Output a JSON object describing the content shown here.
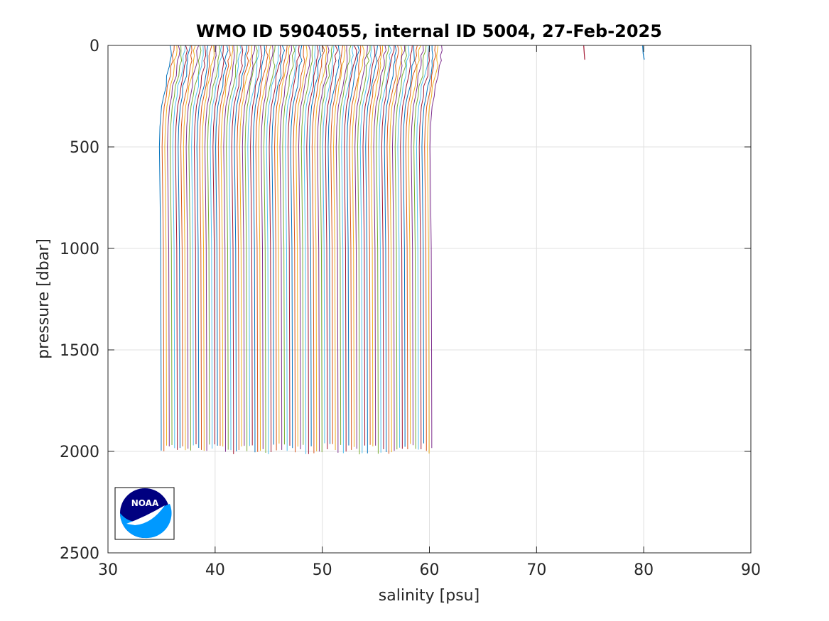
{
  "chart_data": {
    "type": "line",
    "title": "WMO ID 5904055, internal ID 5004, 27-Feb-2025",
    "xlabel": "salinity [psu]",
    "ylabel": "pressure [dbar]",
    "xlim": [
      30,
      90
    ],
    "ylim": [
      0,
      2500
    ],
    "y_reversed": true,
    "xticks": [
      30,
      40,
      50,
      60,
      70,
      80,
      90
    ],
    "yticks": [
      0,
      500,
      1000,
      1500,
      2000,
      2500
    ],
    "grid": true,
    "profile_offset_psu": 0.25,
    "profile_count": 102,
    "base_profile": {
      "pressure": [
        0,
        25,
        50,
        75,
        100,
        150,
        200,
        250,
        300,
        400,
        500,
        700,
        1000,
        1500,
        1900,
        2000
      ],
      "salinity": [
        35.85,
        35.85,
        35.8,
        35.75,
        35.7,
        35.55,
        35.35,
        35.2,
        35.0,
        34.85,
        34.8,
        34.85,
        34.92,
        34.95,
        34.97,
        34.97
      ]
    },
    "outlier_profiles": [
      {
        "salinity": [
          74.4,
          74.45,
          74.5
        ],
        "pressure": [
          0,
          40,
          70
        ],
        "color": "#A2142F"
      },
      {
        "salinity": [
          79.9,
          79.95,
          80.05
        ],
        "pressure": [
          0,
          40,
          70
        ],
        "color": "#0072BD"
      }
    ],
    "series_colors": [
      "#0072BD",
      "#D95319",
      "#EDB120",
      "#7E2F8E",
      "#77AC30",
      "#4DBEEE",
      "#A2142F"
    ]
  },
  "logo": {
    "text": "NOAA",
    "outer_color": "#000080",
    "inner_color": "#0099ff"
  }
}
